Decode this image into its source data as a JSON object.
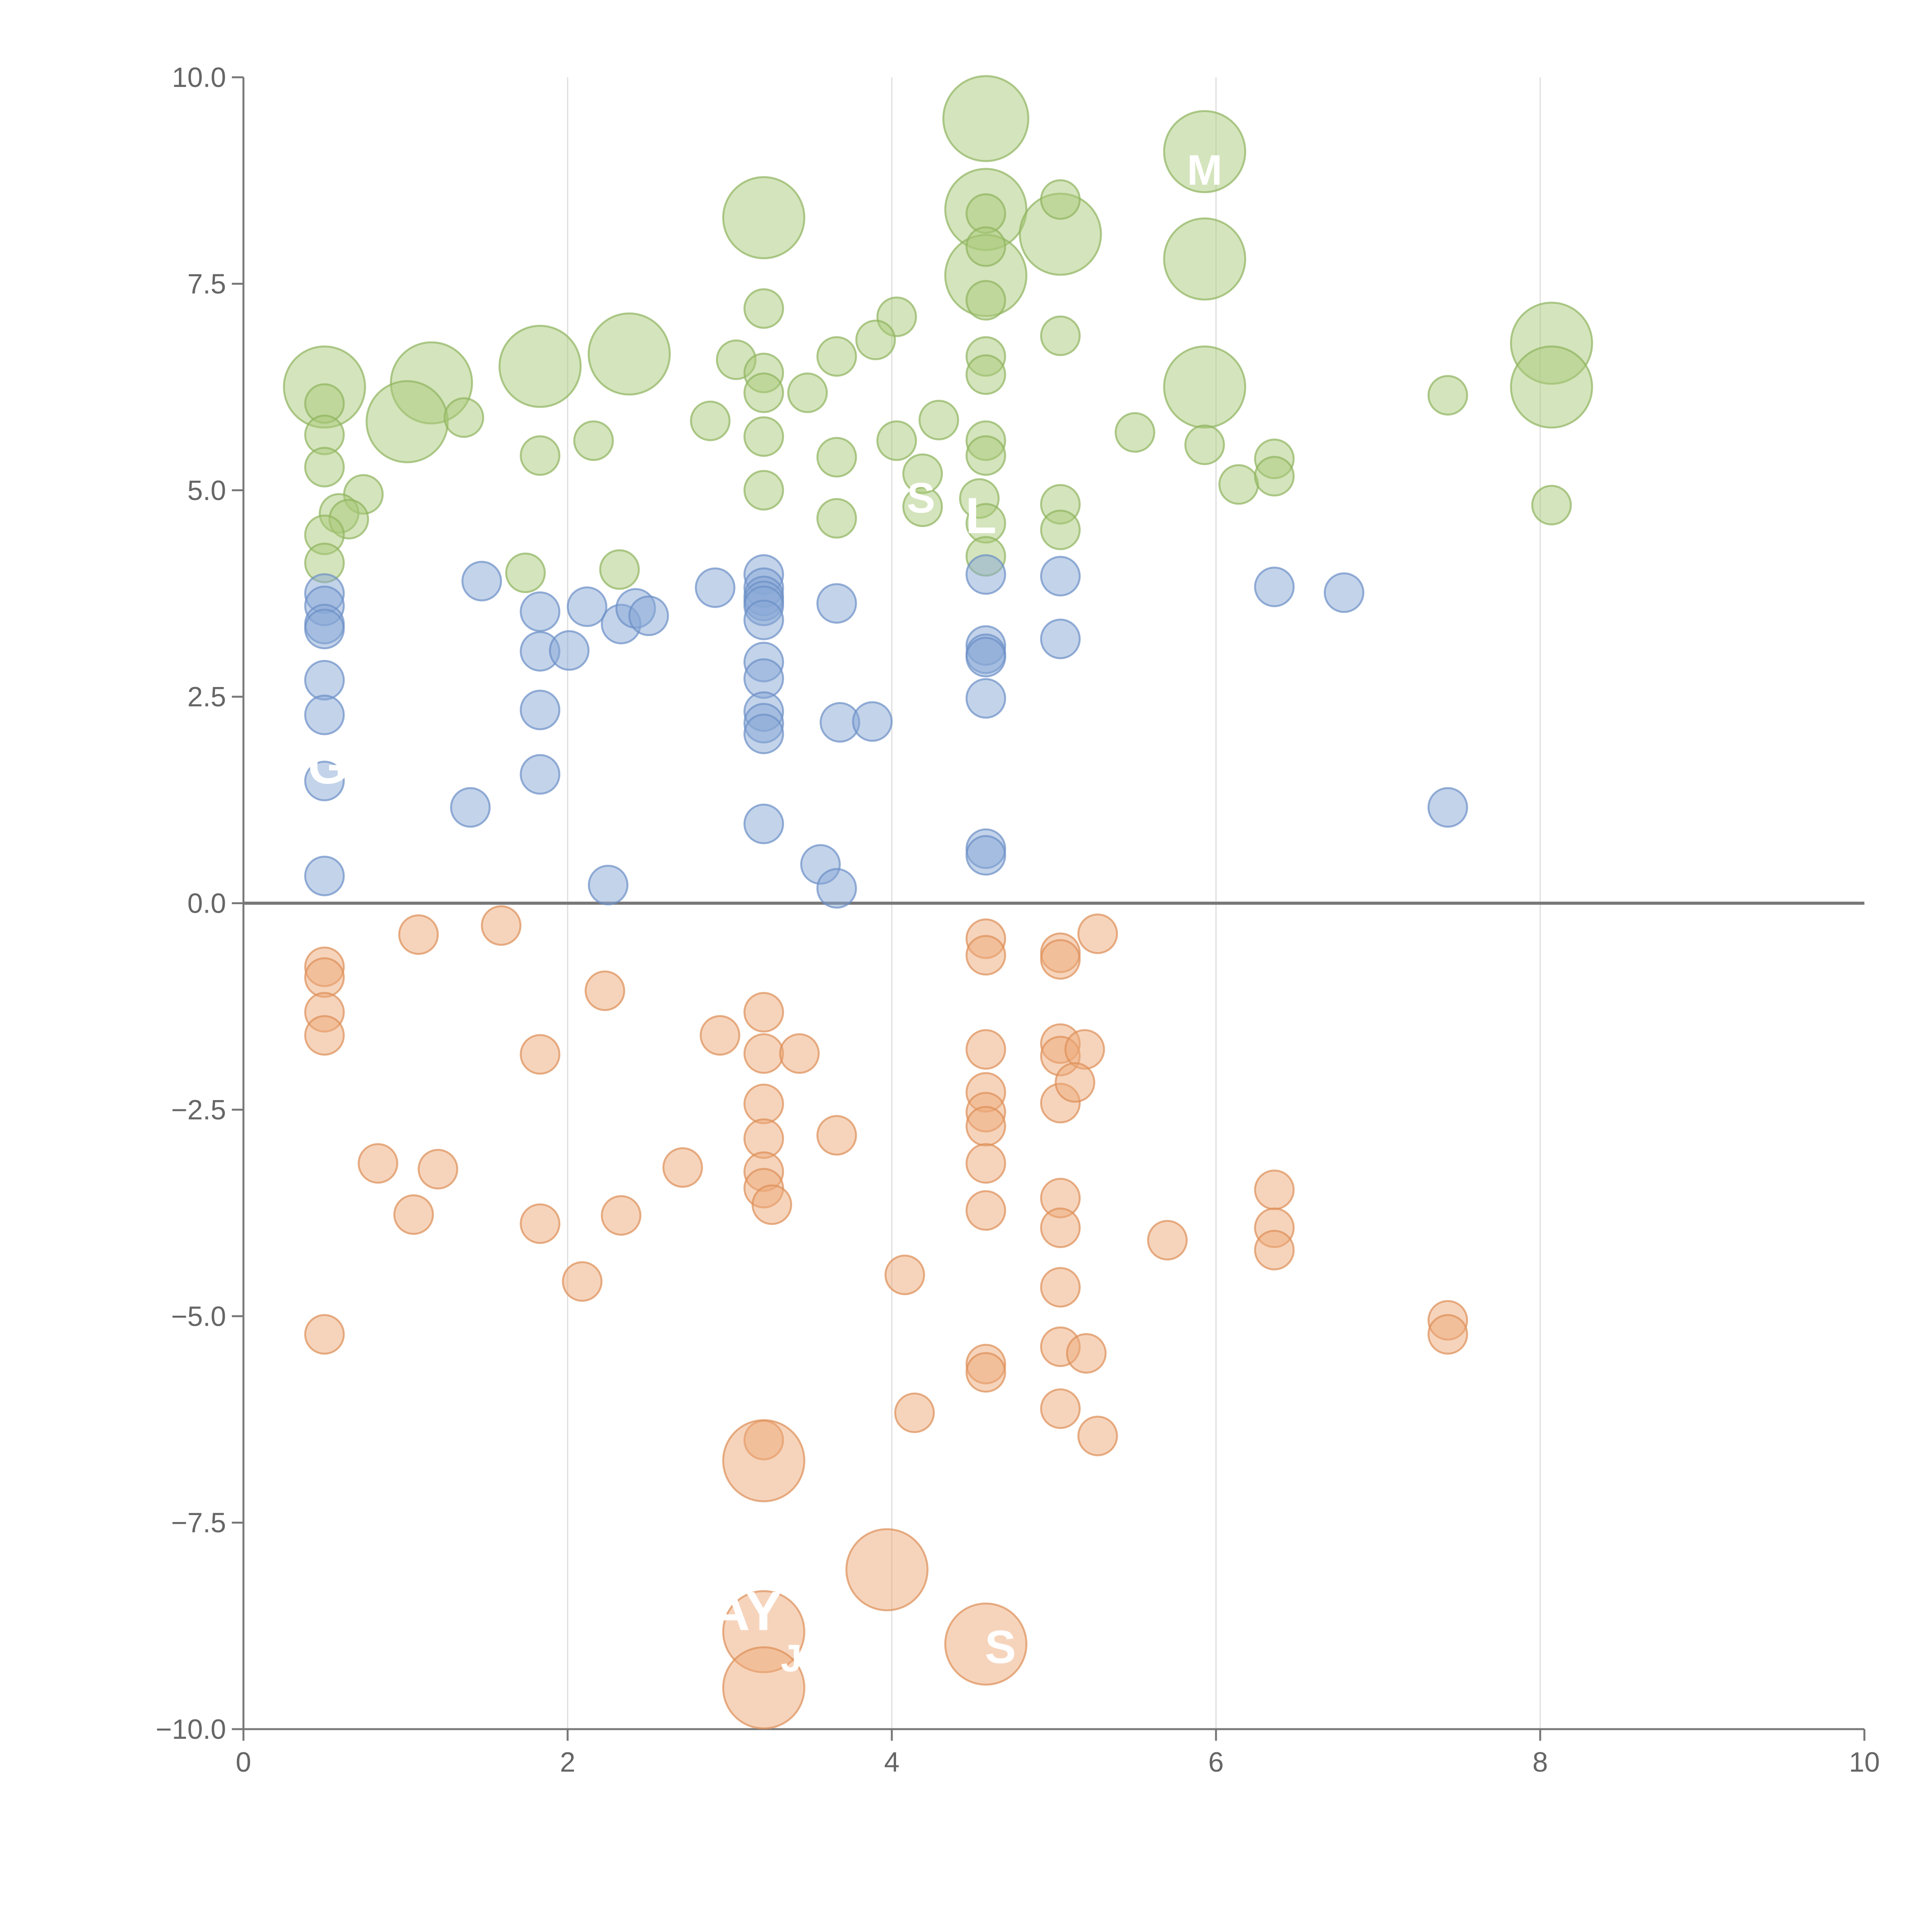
{
  "chart_data": {
    "type": "scatter",
    "title": "",
    "xlabel": "",
    "ylabel": "",
    "xlim": [
      0,
      10
    ],
    "ylim": [
      -10,
      10
    ],
    "x_ticks": [
      "0",
      "2",
      "4",
      "6",
      "8",
      "10"
    ],
    "y_ticks": [
      "−10.0",
      "−7.5",
      "−5.0",
      "−2.5",
      "0.0",
      "2.5",
      "5.0",
      "7.5",
      "10.0"
    ],
    "grid": "vertical",
    "legend": "none",
    "series": [
      {
        "name": "green",
        "color": "#a9c97a",
        "stroke": "#8fb35e",
        "points": [
          {
            "x": 4.58,
            "y": 9.5,
            "s": 2.2
          },
          {
            "x": 5.93,
            "y": 9.1,
            "s": 2.1
          },
          {
            "x": 3.21,
            "y": 8.3,
            "s": 2.1
          },
          {
            "x": 4.58,
            "y": 8.4,
            "s": 2.1
          },
          {
            "x": 5.04,
            "y": 8.1,
            "s": 2.1
          },
          {
            "x": 4.58,
            "y": 7.6,
            "s": 2.1
          },
          {
            "x": 5.93,
            "y": 7.8,
            "s": 2.1
          },
          {
            "x": 0.5,
            "y": 6.25,
            "s": 2.1
          },
          {
            "x": 1.16,
            "y": 6.3,
            "s": 2.1
          },
          {
            "x": 1.83,
            "y": 6.5,
            "s": 2.1
          },
          {
            "x": 2.38,
            "y": 6.65,
            "s": 2.1
          },
          {
            "x": 1.01,
            "y": 5.83,
            "s": 2.1
          },
          {
            "x": 5.93,
            "y": 6.25,
            "s": 2.1
          },
          {
            "x": 8.07,
            "y": 6.78,
            "s": 2.1
          },
          {
            "x": 8.07,
            "y": 6.25,
            "s": 2.1
          },
          {
            "x": 5.04,
            "y": 8.52,
            "s": 1
          },
          {
            "x": 4.58,
            "y": 8.35,
            "s": 1
          },
          {
            "x": 4.58,
            "y": 7.95,
            "s": 1
          },
          {
            "x": 4.58,
            "y": 7.3,
            "s": 1
          },
          {
            "x": 3.21,
            "y": 7.2,
            "s": 1
          },
          {
            "x": 4.03,
            "y": 7.1,
            "s": 1
          },
          {
            "x": 3.9,
            "y": 6.82,
            "s": 1
          },
          {
            "x": 5.04,
            "y": 6.87,
            "s": 1
          },
          {
            "x": 3.04,
            "y": 6.58,
            "s": 1
          },
          {
            "x": 3.66,
            "y": 6.62,
            "s": 1
          },
          {
            "x": 4.58,
            "y": 6.62,
            "s": 1
          },
          {
            "x": 4.58,
            "y": 6.4,
            "s": 1
          },
          {
            "x": 3.21,
            "y": 6.42,
            "s": 1
          },
          {
            "x": 3.21,
            "y": 6.18,
            "s": 1
          },
          {
            "x": 3.48,
            "y": 6.18,
            "s": 1
          },
          {
            "x": 0.5,
            "y": 6.05,
            "s": 1
          },
          {
            "x": 1.36,
            "y": 5.88,
            "s": 1
          },
          {
            "x": 2.88,
            "y": 5.84,
            "s": 1
          },
          {
            "x": 4.29,
            "y": 5.85,
            "s": 1
          },
          {
            "x": 0.5,
            "y": 5.67,
            "s": 1
          },
          {
            "x": 2.16,
            "y": 5.6,
            "s": 1
          },
          {
            "x": 3.21,
            "y": 5.65,
            "s": 1
          },
          {
            "x": 4.03,
            "y": 5.6,
            "s": 1
          },
          {
            "x": 4.58,
            "y": 5.6,
            "s": 1
          },
          {
            "x": 5.5,
            "y": 5.7,
            "s": 1
          },
          {
            "x": 5.93,
            "y": 5.55,
            "s": 1
          },
          {
            "x": 1.83,
            "y": 5.42,
            "s": 1
          },
          {
            "x": 3.66,
            "y": 5.4,
            "s": 1
          },
          {
            "x": 4.58,
            "y": 5.42,
            "s": 1
          },
          {
            "x": 6.36,
            "y": 5.38,
            "s": 1
          },
          {
            "x": 0.5,
            "y": 5.28,
            "s": 1
          },
          {
            "x": 4.19,
            "y": 5.2,
            "s": 1
          },
          {
            "x": 6.14,
            "y": 5.07,
            "s": 1
          },
          {
            "x": 6.36,
            "y": 5.17,
            "s": 1
          },
          {
            "x": 3.21,
            "y": 5.0,
            "s": 1
          },
          {
            "x": 0.74,
            "y": 4.95,
            "s": 1
          },
          {
            "x": 4.54,
            "y": 4.9,
            "s": 1
          },
          {
            "x": 5.04,
            "y": 4.83,
            "s": 1
          },
          {
            "x": 8.07,
            "y": 4.82,
            "s": 1
          },
          {
            "x": 4.19,
            "y": 4.8,
            "s": 1
          },
          {
            "x": 0.59,
            "y": 4.72,
            "s": 1
          },
          {
            "x": 0.65,
            "y": 4.65,
            "s": 1
          },
          {
            "x": 3.66,
            "y": 4.66,
            "s": 1
          },
          {
            "x": 4.58,
            "y": 4.6,
            "s": 1
          },
          {
            "x": 5.04,
            "y": 4.52,
            "s": 1
          },
          {
            "x": 0.5,
            "y": 4.46,
            "s": 1
          },
          {
            "x": 4.58,
            "y": 4.2,
            "s": 1
          },
          {
            "x": 0.5,
            "y": 4.12,
            "s": 1
          },
          {
            "x": 2.32,
            "y": 4.04,
            "s": 1
          },
          {
            "x": 1.74,
            "y": 4.0,
            "s": 1
          },
          {
            "x": 7.43,
            "y": 6.15,
            "s": 1
          }
        ]
      },
      {
        "name": "blue",
        "color": "#87a7d6",
        "stroke": "#6b8fc6",
        "points": [
          {
            "x": 0.5,
            "y": 3.75,
            "s": 1
          },
          {
            "x": 0.5,
            "y": 3.6,
            "s": 1
          },
          {
            "x": 0.5,
            "y": 3.38,
            "s": 1
          },
          {
            "x": 0.5,
            "y": 3.32,
            "s": 1
          },
          {
            "x": 0.5,
            "y": 2.7,
            "s": 1
          },
          {
            "x": 0.5,
            "y": 2.28,
            "s": 1
          },
          {
            "x": 0.5,
            "y": 1.48,
            "s": 1
          },
          {
            "x": 0.5,
            "y": 0.33,
            "s": 1
          },
          {
            "x": 1.47,
            "y": 3.9,
            "s": 1
          },
          {
            "x": 1.83,
            "y": 3.53,
            "s": 1
          },
          {
            "x": 1.83,
            "y": 3.05,
            "s": 1
          },
          {
            "x": 1.83,
            "y": 2.34,
            "s": 1
          },
          {
            "x": 1.83,
            "y": 1.56,
            "s": 1
          },
          {
            "x": 1.4,
            "y": 1.16,
            "s": 1
          },
          {
            "x": 2.01,
            "y": 3.06,
            "s": 1
          },
          {
            "x": 2.12,
            "y": 3.59,
            "s": 1
          },
          {
            "x": 2.33,
            "y": 3.38,
            "s": 1
          },
          {
            "x": 2.42,
            "y": 3.57,
            "s": 1
          },
          {
            "x": 2.5,
            "y": 3.48,
            "s": 1
          },
          {
            "x": 2.25,
            "y": 0.22,
            "s": 1
          },
          {
            "x": 2.91,
            "y": 3.82,
            "s": 1
          },
          {
            "x": 3.21,
            "y": 3.98,
            "s": 1
          },
          {
            "x": 3.21,
            "y": 3.82,
            "s": 1
          },
          {
            "x": 3.21,
            "y": 3.72,
            "s": 1
          },
          {
            "x": 3.21,
            "y": 3.66,
            "s": 1
          },
          {
            "x": 3.21,
            "y": 3.6,
            "s": 1
          },
          {
            "x": 3.21,
            "y": 3.43,
            "s": 1
          },
          {
            "x": 3.21,
            "y": 2.92,
            "s": 1
          },
          {
            "x": 3.21,
            "y": 2.72,
            "s": 1
          },
          {
            "x": 3.21,
            "y": 2.32,
            "s": 1
          },
          {
            "x": 3.21,
            "y": 2.18,
            "s": 1
          },
          {
            "x": 3.21,
            "y": 2.05,
            "s": 1
          },
          {
            "x": 3.21,
            "y": 0.96,
            "s": 1
          },
          {
            "x": 3.66,
            "y": 3.63,
            "s": 1
          },
          {
            "x": 3.68,
            "y": 2.19,
            "s": 1
          },
          {
            "x": 3.88,
            "y": 2.2,
            "s": 1
          },
          {
            "x": 3.56,
            "y": 0.47,
            "s": 1
          },
          {
            "x": 3.66,
            "y": 0.18,
            "s": 1
          },
          {
            "x": 4.58,
            "y": 3.98,
            "s": 1
          },
          {
            "x": 4.58,
            "y": 3.12,
            "s": 1
          },
          {
            "x": 4.58,
            "y": 3.02,
            "s": 1
          },
          {
            "x": 4.58,
            "y": 2.98,
            "s": 1
          },
          {
            "x": 4.58,
            "y": 2.48,
            "s": 1
          },
          {
            "x": 4.58,
            "y": 0.66,
            "s": 1
          },
          {
            "x": 4.58,
            "y": 0.58,
            "s": 1
          },
          {
            "x": 5.04,
            "y": 3.96,
            "s": 1
          },
          {
            "x": 5.04,
            "y": 3.2,
            "s": 1
          },
          {
            "x": 6.36,
            "y": 3.83,
            "s": 1
          },
          {
            "x": 6.79,
            "y": 3.76,
            "s": 1
          },
          {
            "x": 7.43,
            "y": 1.16,
            "s": 1
          }
        ]
      },
      {
        "name": "orange",
        "color": "#eeaa7a",
        "stroke": "#dd8f57",
        "points": [
          {
            "x": 0.5,
            "y": -0.77,
            "s": 1
          },
          {
            "x": 0.5,
            "y": -0.9,
            "s": 1
          },
          {
            "x": 0.5,
            "y": -1.32,
            "s": 1
          },
          {
            "x": 0.5,
            "y": -1.6,
            "s": 1
          },
          {
            "x": 0.5,
            "y": -5.22,
            "s": 1
          },
          {
            "x": 1.08,
            "y": -0.38,
            "s": 1
          },
          {
            "x": 1.59,
            "y": -0.27,
            "s": 1
          },
          {
            "x": 0.83,
            "y": -3.15,
            "s": 1
          },
          {
            "x": 1.2,
            "y": -3.22,
            "s": 1
          },
          {
            "x": 1.05,
            "y": -3.77,
            "s": 1
          },
          {
            "x": 1.83,
            "y": -1.83,
            "s": 1
          },
          {
            "x": 1.83,
            "y": -3.88,
            "s": 1
          },
          {
            "x": 2.23,
            "y": -1.06,
            "s": 1
          },
          {
            "x": 2.09,
            "y": -4.58,
            "s": 1
          },
          {
            "x": 2.33,
            "y": -3.78,
            "s": 1
          },
          {
            "x": 2.71,
            "y": -3.2,
            "s": 1
          },
          {
            "x": 2.94,
            "y": -1.6,
            "s": 1
          },
          {
            "x": 3.21,
            "y": -1.32,
            "s": 1
          },
          {
            "x": 3.21,
            "y": -1.82,
            "s": 1
          },
          {
            "x": 3.43,
            "y": -1.82,
            "s": 1
          },
          {
            "x": 3.21,
            "y": -2.43,
            "s": 1
          },
          {
            "x": 3.21,
            "y": -2.85,
            "s": 1
          },
          {
            "x": 3.21,
            "y": -3.25,
            "s": 1
          },
          {
            "x": 3.21,
            "y": -3.45,
            "s": 1
          },
          {
            "x": 3.26,
            "y": -3.65,
            "s": 1
          },
          {
            "x": 3.21,
            "y": -6.5,
            "s": 1
          },
          {
            "x": 3.66,
            "y": -2.81,
            "s": 1
          },
          {
            "x": 4.08,
            "y": -4.5,
            "s": 1
          },
          {
            "x": 4.14,
            "y": -6.17,
            "s": 1
          },
          {
            "x": 4.58,
            "y": -0.43,
            "s": 1
          },
          {
            "x": 4.58,
            "y": -0.63,
            "s": 1
          },
          {
            "x": 4.58,
            "y": -1.77,
            "s": 1
          },
          {
            "x": 4.58,
            "y": -2.29,
            "s": 1
          },
          {
            "x": 4.58,
            "y": -2.53,
            "s": 1
          },
          {
            "x": 4.58,
            "y": -2.7,
            "s": 1
          },
          {
            "x": 4.58,
            "y": -3.15,
            "s": 1
          },
          {
            "x": 4.58,
            "y": -3.72,
            "s": 1
          },
          {
            "x": 4.58,
            "y": -5.58,
            "s": 1
          },
          {
            "x": 4.58,
            "y": -5.68,
            "s": 1
          },
          {
            "x": 5.04,
            "y": -0.6,
            "s": 1
          },
          {
            "x": 5.04,
            "y": -0.68,
            "s": 1
          },
          {
            "x": 5.04,
            "y": -1.7,
            "s": 1
          },
          {
            "x": 5.04,
            "y": -1.85,
            "s": 1
          },
          {
            "x": 5.04,
            "y": -2.42,
            "s": 1
          },
          {
            "x": 5.04,
            "y": -3.57,
            "s": 1
          },
          {
            "x": 5.04,
            "y": -3.93,
            "s": 1
          },
          {
            "x": 5.04,
            "y": -4.65,
            "s": 1
          },
          {
            "x": 5.04,
            "y": -5.37,
            "s": 1
          },
          {
            "x": 5.04,
            "y": -6.12,
            "s": 1
          },
          {
            "x": 5.27,
            "y": -0.37,
            "s": 1
          },
          {
            "x": 5.19,
            "y": -1.77,
            "s": 1
          },
          {
            "x": 5.13,
            "y": -2.17,
            "s": 1
          },
          {
            "x": 5.2,
            "y": -5.45,
            "s": 1
          },
          {
            "x": 5.27,
            "y": -6.45,
            "s": 1
          },
          {
            "x": 5.7,
            "y": -4.08,
            "s": 1
          },
          {
            "x": 6.36,
            "y": -3.47,
            "s": 1
          },
          {
            "x": 6.36,
            "y": -3.93,
            "s": 1
          },
          {
            "x": 6.36,
            "y": -4.2,
            "s": 1
          },
          {
            "x": 7.43,
            "y": -5.05,
            "s": 1
          },
          {
            "x": 7.43,
            "y": -5.22,
            "s": 1
          },
          {
            "x": 3.21,
            "y": -6.75,
            "s": 2.1
          },
          {
            "x": 3.97,
            "y": -8.07,
            "s": 2.1
          },
          {
            "x": 3.21,
            "y": -8.82,
            "s": 2.1
          },
          {
            "x": 4.58,
            "y": -8.97,
            "s": 2.1
          },
          {
            "x": 3.21,
            "y": -9.5,
            "s": 2.1
          }
        ]
      }
    ],
    "annotations": [
      {
        "text": "G",
        "x": 0.52,
        "y": 1.45,
        "size": 1.2
      },
      {
        "text": "L",
        "x": 4.55,
        "y": 4.48,
        "size": 1.2
      },
      {
        "text": "S",
        "x": 4.18,
        "y": 4.73,
        "size": 1.0
      },
      {
        "text": "M",
        "x": 5.93,
        "y": 8.7,
        "size": 1.0
      },
      {
        "text": "AY",
        "x": 3.1,
        "y": -8.8,
        "size": 1.3
      },
      {
        "text": "S",
        "x": 4.67,
        "y": -9.2,
        "size": 1.1
      },
      {
        "text": "J",
        "x": 3.38,
        "y": -9.3,
        "size": 0.9
      }
    ]
  }
}
